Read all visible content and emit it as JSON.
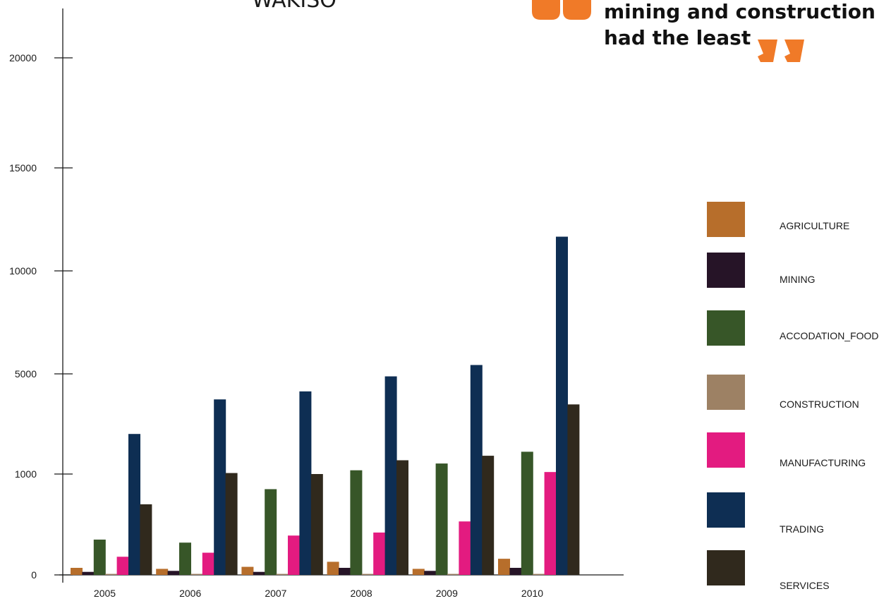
{
  "annotation": {
    "line1": "mining and construction",
    "line2": "had the least",
    "quote_color": "#F07A28"
  },
  "chart_data": {
    "type": "bar",
    "title": "WAKISO",
    "xlabel": "",
    "ylabel": "",
    "categories": [
      "2005",
      "2006",
      "2007",
      "2008",
      "2009",
      "2010"
    ],
    "y_ticks": [
      {
        "label": "0",
        "value": 0
      },
      {
        "label": "1000",
        "value": 1000
      },
      {
        "label": "5000",
        "value": 5000
      },
      {
        "label": "10000",
        "value": 10000
      },
      {
        "label": "15000",
        "value": 15000
      },
      {
        "label": "20000",
        "value": 20000
      }
    ],
    "y_scale": "piecewise",
    "ylim": [
      0,
      22000
    ],
    "grid": false,
    "legend_position": "right",
    "series": [
      {
        "name": "AGRICULTURE",
        "color": "#B76E2B",
        "values": [
          70,
          60,
          80,
          130,
          60,
          160
        ]
      },
      {
        "name": "MINING",
        "color": "#261427",
        "values": [
          30,
          40,
          30,
          70,
          40,
          70
        ]
      },
      {
        "name": "ACCODATION_FOOD",
        "color": "#375628",
        "values": [
          350,
          320,
          850,
          1150,
          1420,
          1890
        ]
      },
      {
        "name": "CONSTRUCTION",
        "color": "#9D8164",
        "values": [
          10,
          10,
          10,
          10,
          10,
          10
        ]
      },
      {
        "name": "MANUFACTURING",
        "color": "#E31B80",
        "values": [
          180,
          220,
          390,
          420,
          530,
          1080
        ]
      },
      {
        "name": "TRADING",
        "color": "#0E2E53",
        "values": [
          2600,
          3980,
          4300,
          4900,
          5430,
          11660
        ]
      },
      {
        "name": "SERVICES",
        "color": "#30291D",
        "values": [
          700,
          1040,
          1000,
          1550,
          1730,
          3780
        ]
      }
    ]
  }
}
